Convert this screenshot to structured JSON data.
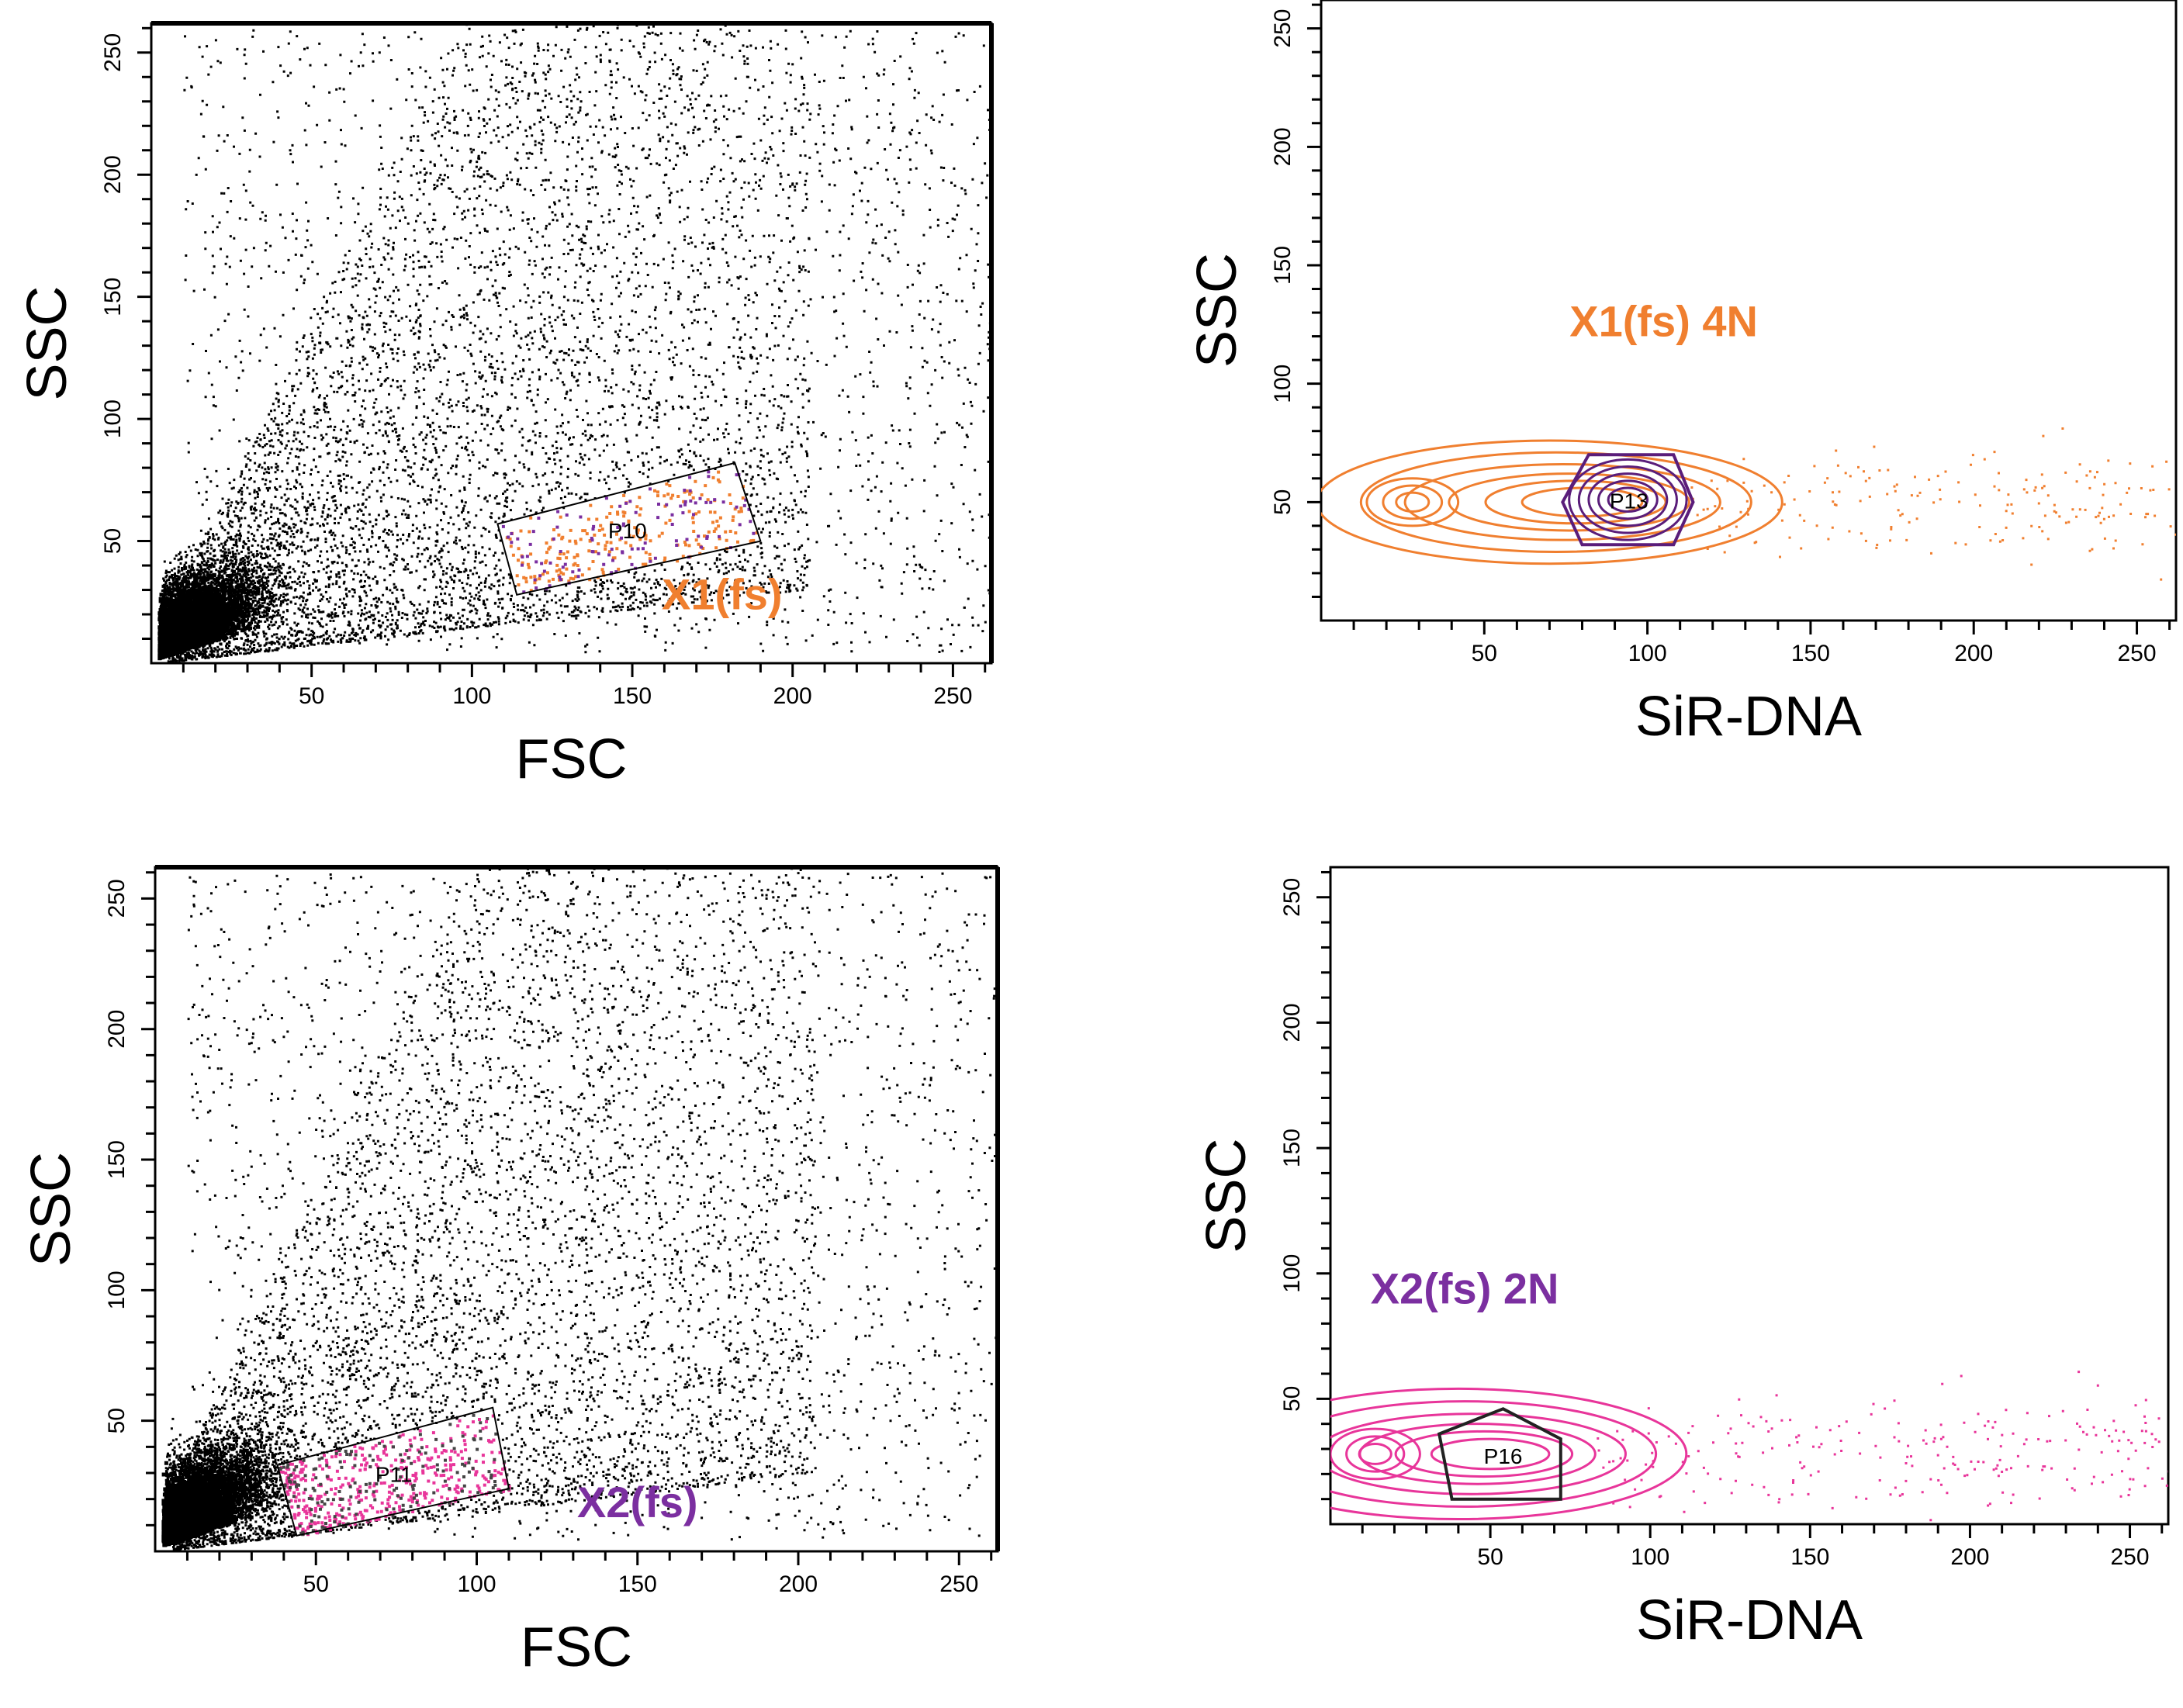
{
  "chart_data": [
    {
      "id": "fsc-ssc-x1",
      "type": "scatter",
      "xlabel": "FSC",
      "ylabel": "SSC",
      "xlim": [
        0,
        262
      ],
      "ylim": [
        0,
        262
      ],
      "xticks": [
        50,
        100,
        150,
        200,
        250
      ],
      "yticks": [
        50,
        100,
        150,
        200,
        250
      ],
      "population": {
        "seed": 11,
        "count": 14000,
        "dense_center": [
          8,
          10
        ]
      },
      "gate": {
        "name": "P10",
        "polygon": [
          [
            108,
            57
          ],
          [
            182,
            82
          ],
          [
            190,
            50
          ],
          [
            114,
            28
          ]
        ],
        "color": "#f07f2f",
        "secondary_color": "#7a2ea0"
      },
      "annotation": {
        "text": "X1(fs)",
        "x": 178,
        "y": 22,
        "color": "#f07f2f"
      }
    },
    {
      "id": "sir-ssc-x1",
      "type": "scatter",
      "xlabel": "SiR-DNA",
      "ylabel": "SSC",
      "xlim": [
        0,
        262
      ],
      "ylim": [
        0,
        262
      ],
      "xticks": [
        50,
        100,
        150,
        200,
        250
      ],
      "yticks": [
        50,
        100,
        150,
        200,
        250
      ],
      "contour_color": "#f07f2f",
      "contour_center": [
        70,
        50
      ],
      "gate": {
        "name": "P13",
        "polygon": [
          [
            80,
            32
          ],
          [
            108,
            32
          ],
          [
            114,
            50
          ],
          [
            108,
            70
          ],
          [
            82,
            70
          ],
          [
            74,
            50
          ]
        ],
        "color": "#5a1d7a"
      },
      "annotation": {
        "text": "X1(fs) 4N",
        "x": 105,
        "y": 120,
        "color": "#f07f2f"
      }
    },
    {
      "id": "fsc-ssc-x2",
      "type": "scatter",
      "xlabel": "FSC",
      "ylabel": "SSC",
      "xlim": [
        0,
        262
      ],
      "ylim": [
        0,
        262
      ],
      "xticks": [
        50,
        100,
        150,
        200,
        250
      ],
      "yticks": [
        50,
        100,
        150,
        200,
        250
      ],
      "population": {
        "seed": 23,
        "count": 14000,
        "dense_center": [
          8,
          10
        ]
      },
      "gate": {
        "name": "P11",
        "polygon": [
          [
            38,
            33
          ],
          [
            105,
            55
          ],
          [
            110,
            24
          ],
          [
            44,
            6
          ]
        ],
        "color": "#e8359a",
        "secondary_color": "#444444"
      },
      "annotation": {
        "text": "X2(fs)",
        "x": 150,
        "y": 13,
        "color": "#7b2fa0"
      }
    },
    {
      "id": "sir-ssc-x2",
      "type": "scatter",
      "xlabel": "SiR-DNA",
      "ylabel": "SSC",
      "xlim": [
        0,
        262
      ],
      "ylim": [
        0,
        262
      ],
      "xticks": [
        50,
        100,
        150,
        200,
        250
      ],
      "yticks": [
        50,
        100,
        150,
        200,
        250
      ],
      "contour_color": "#e8359a",
      "contour_center": [
        40,
        28
      ],
      "gate": {
        "name": "P16",
        "polygon": [
          [
            38,
            10
          ],
          [
            72,
            10
          ],
          [
            72,
            34
          ],
          [
            54,
            46
          ],
          [
            34,
            36
          ]
        ],
        "color": "#222222"
      },
      "annotation": {
        "text": "X2(fs) 2N",
        "x": 42,
        "y": 88,
        "color": "#7b2fa0"
      }
    }
  ]
}
